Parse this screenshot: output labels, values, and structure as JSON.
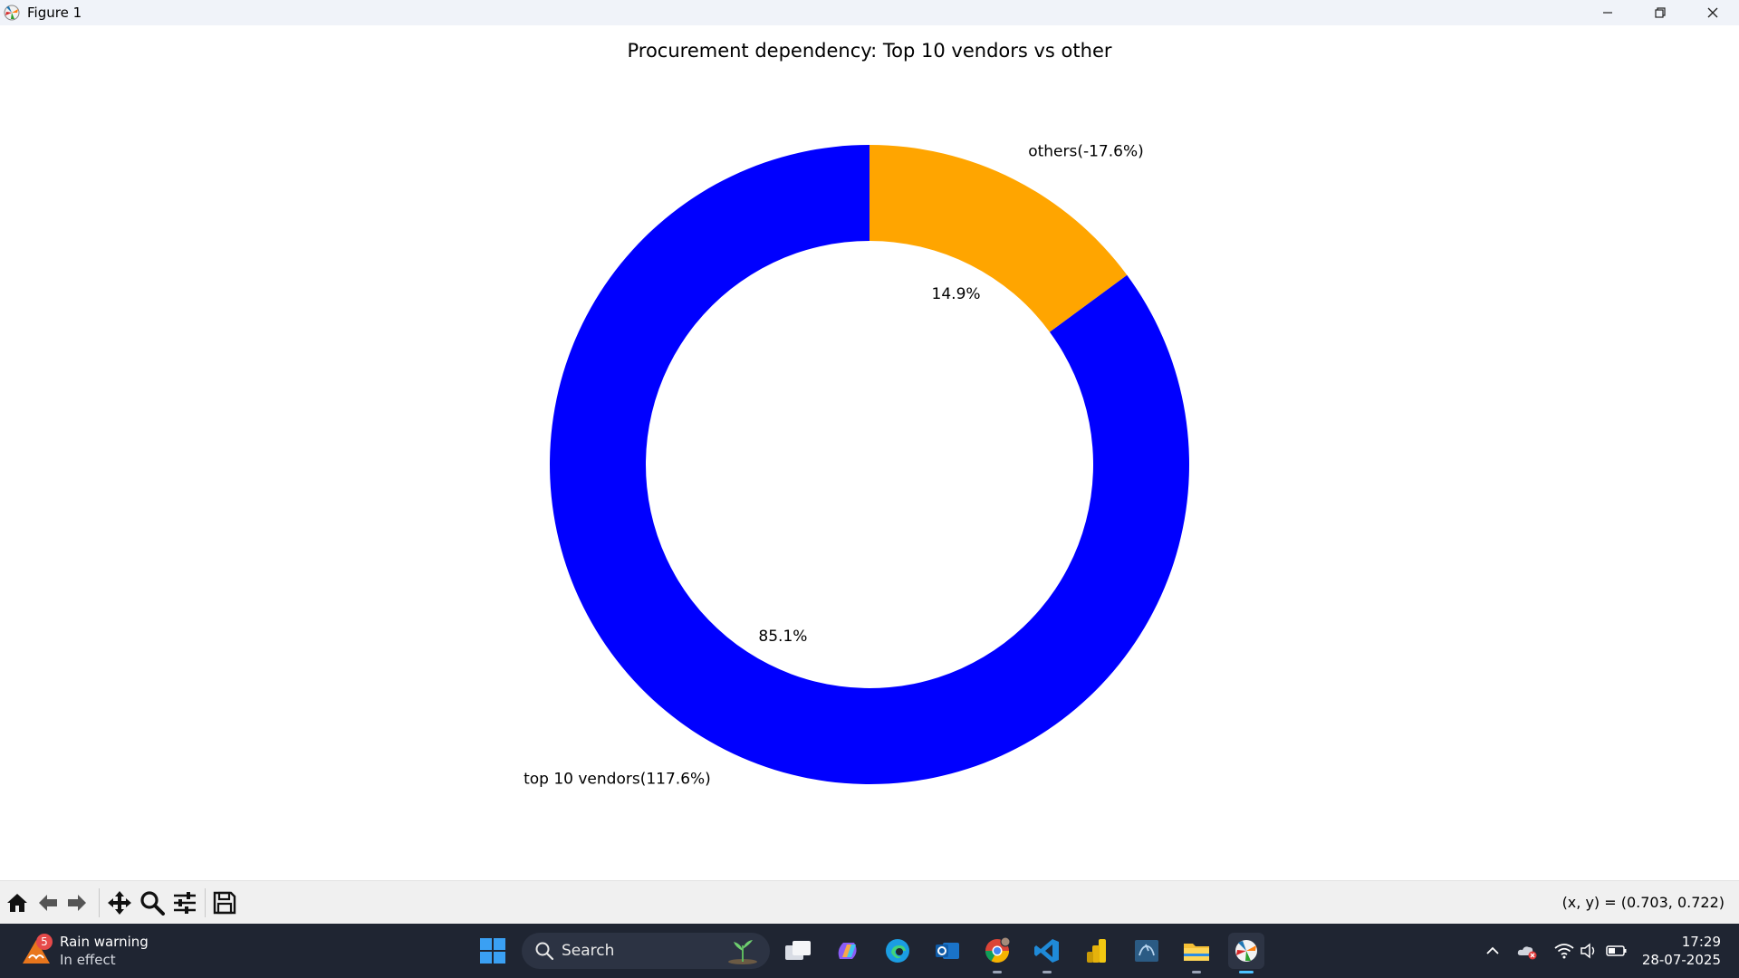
{
  "window": {
    "title": "Figure 1",
    "controls": [
      "minimize-icon",
      "restore-icon",
      "close-icon"
    ]
  },
  "chart_data": {
    "type": "pie",
    "title": "Procurement dependency: Top 10 vendors vs other",
    "hole": "donut",
    "start_angle_deg": 90,
    "direction": "clockwise-from-top-for-others",
    "slices": [
      {
        "label": "top 10 vendors(117.6%)",
        "pct_label": "85.1%",
        "value": 85.1,
        "color": "#0000ff"
      },
      {
        "label": "others(-17.6%)",
        "pct_label": "14.9%",
        "value": 14.9,
        "color": "#ffa500"
      }
    ]
  },
  "toolbar": {
    "tools": [
      "home-icon",
      "back-icon",
      "forward-icon",
      "pan-icon",
      "zoom-icon",
      "configure-subplots-icon",
      "save-icon"
    ],
    "coords": "(x, y) = (0.703, 0.722)"
  },
  "taskbar": {
    "weather": {
      "title": "Rain warning",
      "subtitle": "In effect",
      "badge": "5"
    },
    "search_placeholder": "Search",
    "apps": [
      "windows-start-icon",
      "task-view-icon",
      "copilot-icon",
      "edge-icon",
      "outlook-icon",
      "chrome-icon",
      "vscode-icon",
      "power-bi-icon",
      "mysql-workbench-icon",
      "file-explorer-icon",
      "matplotlib-figure-icon"
    ],
    "time": "17:29",
    "date": "28-07-2025"
  }
}
